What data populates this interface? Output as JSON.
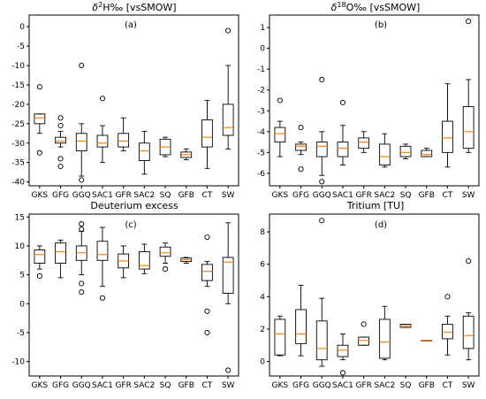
{
  "chart_data": [
    {
      "type": "boxplot",
      "title_main": "δ",
      "title_sup": "2",
      "title_rest": "H‰ [vsSMOW]",
      "panel_label": "(a)",
      "categories": [
        "GKS",
        "GFG",
        "GGQ",
        "SAC1",
        "GFR",
        "SAC2",
        "SQ",
        "GFB",
        "CT",
        "SW"
      ],
      "ylim": [
        -41,
        3
      ],
      "yticks": [
        -40,
        -35,
        -30,
        -25,
        -20,
        -15,
        -10,
        -5,
        0
      ],
      "boxes": [
        {
          "q1": -25.0,
          "median": -23.5,
          "q3": -22.5,
          "wl": -27.5,
          "wh": -22.5,
          "outliers": [
            -15.5,
            -32.5
          ]
        },
        {
          "q1": -30.0,
          "median": -29.5,
          "q3": -28.5,
          "wl": -31.0,
          "wh": -27.0,
          "outliers": [
            -23.5,
            -25.5,
            -34.0,
            -36.0
          ]
        },
        {
          "q1": -32.0,
          "median": -29.5,
          "q3": -27.5,
          "wl": -38.5,
          "wh": -25.0,
          "outliers": [
            -10.0,
            -39.5
          ]
        },
        {
          "q1": -31.0,
          "median": -30.0,
          "q3": -28.0,
          "wl": -35.0,
          "wh": -25.5,
          "outliers": [
            -18.5
          ]
        },
        {
          "q1": -31.0,
          "median": -29.5,
          "q3": -27.5,
          "wl": -32.0,
          "wh": -23.5,
          "outliers": []
        },
        {
          "q1": -34.5,
          "median": -32.0,
          "q3": -30.0,
          "wl": -38.0,
          "wh": -27.0,
          "outliers": []
        },
        {
          "q1": -33.0,
          "median": -31.0,
          "q3": -29.0,
          "wl": -33.5,
          "wh": -28.5,
          "outliers": []
        },
        {
          "q1": -33.7,
          "median": -33.0,
          "q3": -32.3,
          "wl": -34.3,
          "wh": -31.5,
          "outliers": []
        },
        {
          "q1": -31.0,
          "median": -28.5,
          "q3": -24.0,
          "wl": -36.5,
          "wh": -19.0,
          "outliers": []
        },
        {
          "q1": -28.0,
          "median": -26.0,
          "q3": -20.0,
          "wl": -31.5,
          "wh": -10.0,
          "outliers": [
            -1.0
          ]
        }
      ]
    },
    {
      "type": "boxplot",
      "title_main": "δ",
      "title_sup": "18",
      "title_rest": "O‰ [vsSMOW]",
      "panel_label": "(b)",
      "categories": [
        "GKS",
        "GFG",
        "GGQ",
        "SAC1",
        "GFR",
        "SAC2",
        "SQ",
        "GFB",
        "CT",
        "SW"
      ],
      "ylim": [
        -6.6,
        1.6
      ],
      "yticks": [
        -6,
        -5,
        -4,
        -3,
        -2,
        -1,
        0,
        1
      ],
      "boxes": [
        {
          "q1": -4.5,
          "median": -4.1,
          "q3": -3.8,
          "wl": -5.2,
          "wh": -3.5,
          "outliers": [
            -2.5
          ]
        },
        {
          "q1": -4.9,
          "median": -4.7,
          "q3": -4.6,
          "wl": -5.1,
          "wh": -4.5,
          "outliers": [
            -3.8,
            -5.8
          ]
        },
        {
          "q1": -5.2,
          "median": -4.7,
          "q3": -4.5,
          "wl": -6.1,
          "wh": -4.0,
          "outliers": [
            -1.5,
            -6.4
          ]
        },
        {
          "q1": -5.2,
          "median": -4.8,
          "q3": -4.5,
          "wl": -5.6,
          "wh": -3.7,
          "outliers": [
            -2.6
          ]
        },
        {
          "q1": -4.8,
          "median": -4.5,
          "q3": -4.3,
          "wl": -5.0,
          "wh": -4.0,
          "outliers": []
        },
        {
          "q1": -5.6,
          "median": -5.2,
          "q3": -4.6,
          "wl": -5.7,
          "wh": -4.1,
          "outliers": []
        },
        {
          "q1": -5.2,
          "median": -5.0,
          "q3": -4.7,
          "wl": -5.3,
          "wh": -4.6,
          "outliers": []
        },
        {
          "q1": -5.2,
          "median": -5.1,
          "q3": -4.9,
          "wl": -5.2,
          "wh": -4.8,
          "outliers": []
        },
        {
          "q1": -5.0,
          "median": -4.3,
          "q3": -3.5,
          "wl": -5.7,
          "wh": -1.7,
          "outliers": []
        },
        {
          "q1": -4.8,
          "median": -4.0,
          "q3": -2.8,
          "wl": -5.0,
          "wh": -1.5,
          "outliers": [
            1.3
          ]
        }
      ]
    },
    {
      "type": "boxplot",
      "title": "Deuterium excess",
      "panel_label": "(c)",
      "categories": [
        "GKS",
        "GFG",
        "GGQ",
        "SAC1",
        "GFR",
        "SAC2",
        "SQ",
        "GFB",
        "CT",
        "SW"
      ],
      "ylim": [
        -12.5,
        15.5
      ],
      "yticks": [
        -10,
        -5,
        0,
        5,
        10,
        15
      ],
      "boxes": [
        {
          "q1": 7.0,
          "median": 8.5,
          "q3": 9.3,
          "wl": 6.0,
          "wh": 10.0,
          "outliers": [
            4.8
          ]
        },
        {
          "q1": 7.0,
          "median": 9.0,
          "q3": 10.5,
          "wl": 4.5,
          "wh": 11.0,
          "outliers": []
        },
        {
          "q1": 7.5,
          "median": 8.8,
          "q3": 10.0,
          "wl": 5.0,
          "wh": 12.5,
          "outliers": [
            13.8,
            12.9,
            3.5,
            2.0
          ]
        },
        {
          "q1": 7.5,
          "median": 8.5,
          "q3": 10.8,
          "wl": 3.0,
          "wh": 13.2,
          "outliers": [
            1.0
          ]
        },
        {
          "q1": 6.2,
          "median": 7.4,
          "q3": 8.6,
          "wl": 4.5,
          "wh": 10.0,
          "outliers": []
        },
        {
          "q1": 6.0,
          "median": 6.6,
          "q3": 9.0,
          "wl": 5.2,
          "wh": 10.3,
          "outliers": []
        },
        {
          "q1": 8.2,
          "median": 8.8,
          "q3": 9.8,
          "wl": 7.0,
          "wh": 10.5,
          "outliers": [
            6.0
          ]
        },
        {
          "q1": 7.3,
          "median": 7.6,
          "q3": 7.9,
          "wl": 7.0,
          "wh": 8.0,
          "outliers": []
        },
        {
          "q1": 4.0,
          "median": 5.6,
          "q3": 6.8,
          "wl": 3.0,
          "wh": 7.3,
          "outliers": [
            11.5,
            -1.3,
            -5.0
          ]
        },
        {
          "q1": 1.8,
          "median": 7.2,
          "q3": 8.0,
          "wl": 0.0,
          "wh": 14.0,
          "outliers": [
            -11.5
          ]
        }
      ]
    },
    {
      "type": "boxplot",
      "title": "Tritium [TU]",
      "panel_label": "(d)",
      "categories": [
        "GKS",
        "GFG",
        "GGQ",
        "SAC1",
        "GFR",
        "SAC2",
        "SQ",
        "GFB",
        "CT",
        "SW"
      ],
      "ylim": [
        -0.9,
        9.1
      ],
      "yticks": [
        0,
        2,
        4,
        6,
        8
      ],
      "boxes": [
        {
          "q1": 0.4,
          "median": 1.7,
          "q3": 2.6,
          "wl": 0.35,
          "wh": 2.8,
          "outliers": []
        },
        {
          "q1": 1.1,
          "median": 1.7,
          "q3": 3.2,
          "wl": 0.35,
          "wh": 4.7,
          "outliers": []
        },
        {
          "q1": 0.1,
          "median": 0.8,
          "q3": 2.5,
          "wl": -0.3,
          "wh": 3.9,
          "outliers": [
            8.7
          ]
        },
        {
          "q1": 0.3,
          "median": 0.7,
          "q3": 1.0,
          "wl": 0.1,
          "wh": 1.7,
          "outliers": [
            -0.7
          ]
        },
        {
          "q1": 1.0,
          "median": 1.3,
          "q3": 1.5,
          "wl": 1.0,
          "wh": 1.5,
          "outliers": [
            2.3
          ]
        },
        {
          "q1": 0.2,
          "median": 1.2,
          "q3": 2.6,
          "wl": 0.1,
          "wh": 3.4,
          "outliers": []
        },
        {
          "q1": 2.1,
          "median": 2.2,
          "q3": 2.3,
          "wl": 2.1,
          "wh": 2.3,
          "outliers": []
        },
        {
          "q1": 1.3,
          "median": 1.3,
          "q3": 1.3,
          "wl": 1.3,
          "wh": 1.3,
          "outliers": []
        },
        {
          "q1": 1.4,
          "median": 1.8,
          "q3": 2.3,
          "wl": 0.4,
          "wh": 2.8,
          "outliers": [
            4.0
          ]
        },
        {
          "q1": 0.8,
          "median": 1.6,
          "q3": 2.8,
          "wl": 0.1,
          "wh": 3.0,
          "outliers": [
            6.2
          ]
        }
      ]
    }
  ],
  "style": {
    "box_color": "#000000",
    "median_color": "#ff7f0e",
    "background": "#ffffff"
  }
}
